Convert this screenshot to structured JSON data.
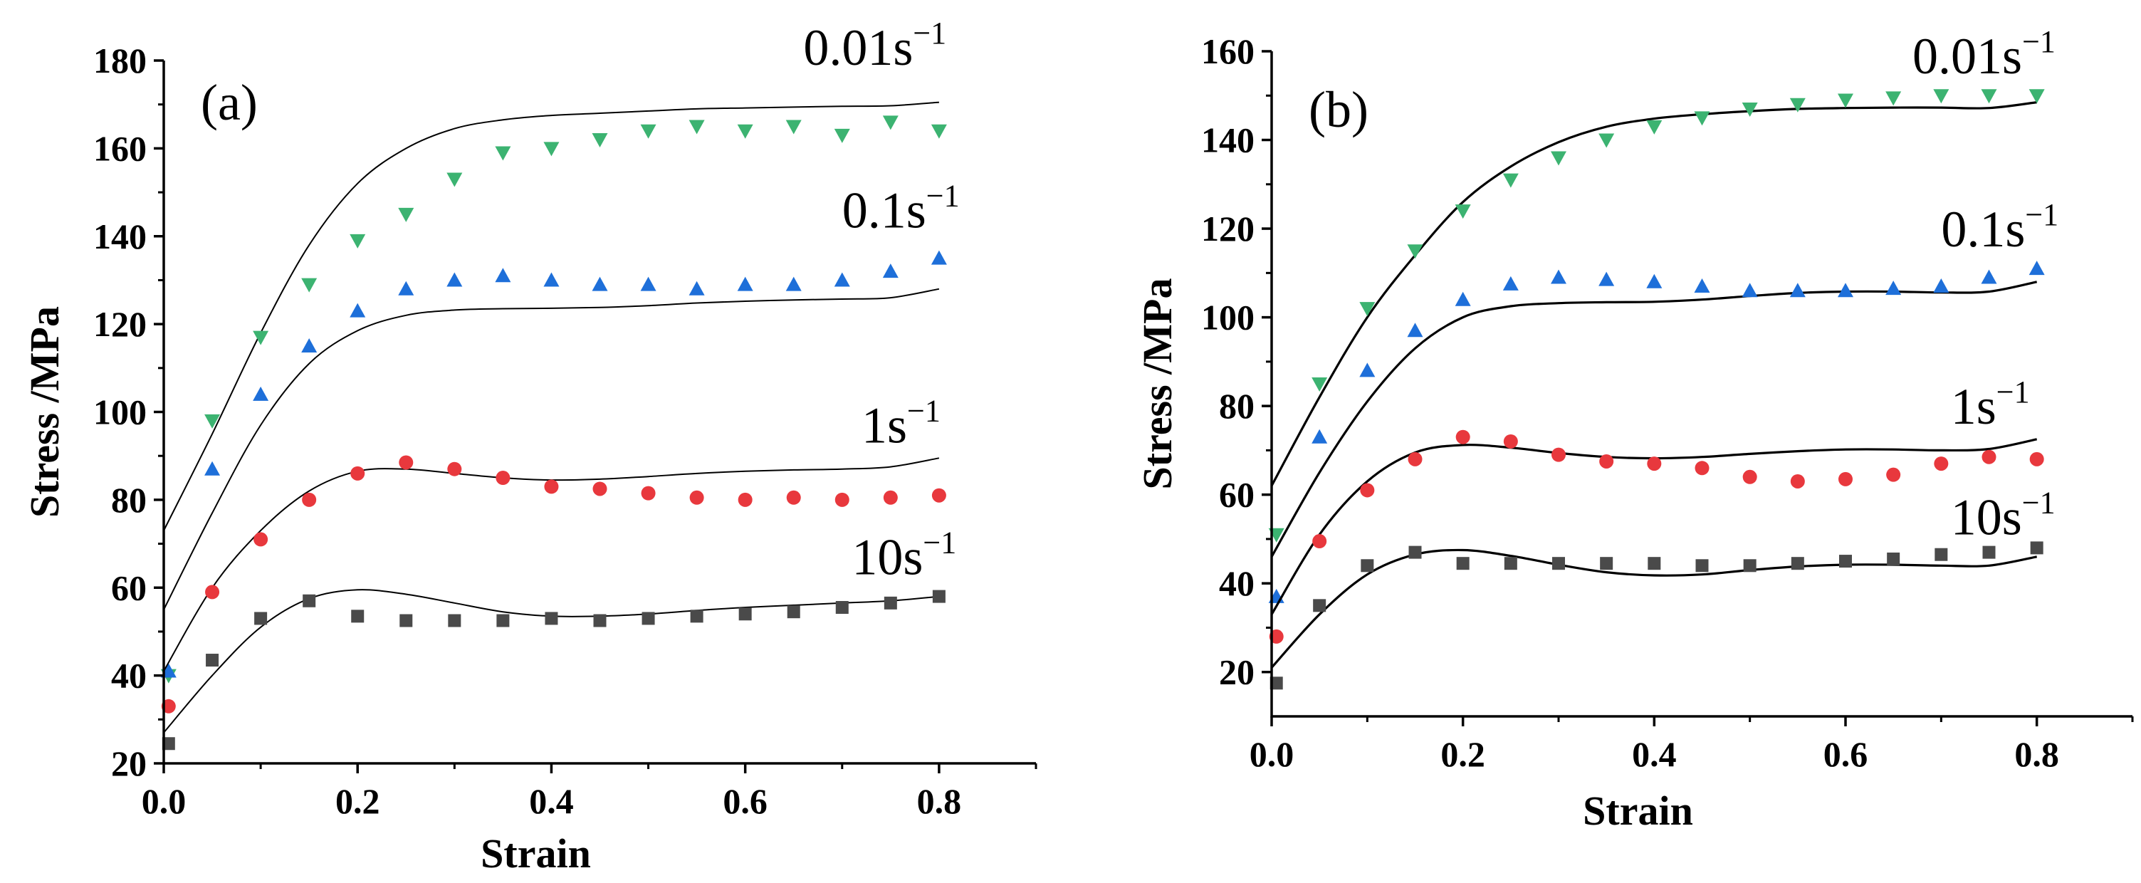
{
  "chart_data": [
    {
      "type": "scatter",
      "panel_label": "(a)",
      "xlabel": "Strain",
      "ylabel": "Stress /MPa",
      "xlim": [
        0,
        0.9
      ],
      "ylim": [
        20,
        180
      ],
      "xticks": [
        0.0,
        0.2,
        0.4,
        0.6,
        0.8
      ],
      "xtick_labels": [
        "0.0",
        "0.2",
        "0.4",
        "0.6",
        "0.8"
      ],
      "yticks": [
        20,
        40,
        60,
        80,
        100,
        120,
        140,
        160,
        180
      ],
      "ytick_labels": [
        "20",
        "40",
        "60",
        "80",
        "100",
        "120",
        "140",
        "160",
        "180"
      ],
      "series": [
        {
          "name": "0.01s-1",
          "label_base": "0.01s",
          "label_sup": "−1",
          "color": "#3cb371",
          "marker": "triangle-down",
          "x": [
            0.005,
            0.05,
            0.1,
            0.15,
            0.2,
            0.25,
            0.3,
            0.35,
            0.4,
            0.45,
            0.5,
            0.55,
            0.6,
            0.65,
            0.7,
            0.75,
            0.8
          ],
          "y": [
            40,
            98,
            117,
            129,
            139,
            145,
            153,
            159,
            160,
            162,
            164,
            165,
            164,
            165,
            163,
            166,
            164
          ],
          "fit_x": [
            0,
            0.05,
            0.1,
            0.15,
            0.2,
            0.25,
            0.3,
            0.35,
            0.4,
            0.45,
            0.5,
            0.55,
            0.6,
            0.65,
            0.7,
            0.75,
            0.8
          ],
          "fit_y": [
            73,
            95,
            118,
            138,
            152,
            160,
            164.5,
            166.5,
            167.5,
            168,
            168.5,
            169,
            169.2,
            169.4,
            169.6,
            169.7,
            170.5
          ],
          "label_x": 0.66,
          "label_y": 179
        },
        {
          "name": "0.1s-1",
          "label_base": "0.1s",
          "label_sup": "−1",
          "color": "#1e6fd9",
          "marker": "triangle-up",
          "x": [
            0.005,
            0.05,
            0.1,
            0.15,
            0.2,
            0.25,
            0.3,
            0.35,
            0.4,
            0.45,
            0.5,
            0.55,
            0.6,
            0.65,
            0.7,
            0.75,
            0.8
          ],
          "y": [
            41,
            87,
            104,
            115,
            123,
            128,
            130,
            131,
            130,
            129,
            129,
            128,
            129,
            129,
            130,
            132,
            135
          ],
          "fit_x": [
            0,
            0.05,
            0.1,
            0.15,
            0.2,
            0.25,
            0.3,
            0.35,
            0.4,
            0.45,
            0.5,
            0.55,
            0.6,
            0.65,
            0.7,
            0.75,
            0.8
          ],
          "fit_y": [
            55,
            77,
            97,
            111,
            118.5,
            122,
            123.2,
            123.5,
            123.6,
            123.8,
            124.2,
            124.8,
            125.2,
            125.5,
            125.7,
            126,
            128
          ],
          "label_x": 0.7,
          "label_y": 142
        },
        {
          "name": "1s-1",
          "label_base": "1s",
          "label_sup": "−1",
          "color": "#e8383d",
          "marker": "circle",
          "x": [
            0.005,
            0.05,
            0.1,
            0.15,
            0.2,
            0.25,
            0.3,
            0.35,
            0.4,
            0.45,
            0.5,
            0.55,
            0.6,
            0.65,
            0.7,
            0.75,
            0.8
          ],
          "y": [
            33,
            59,
            71,
            80,
            86,
            88.5,
            87,
            85,
            83,
            82.5,
            81.5,
            80.5,
            80,
            80.5,
            80,
            80.5,
            81
          ],
          "fit_x": [
            0,
            0.05,
            0.1,
            0.15,
            0.2,
            0.25,
            0.3,
            0.35,
            0.4,
            0.45,
            0.5,
            0.55,
            0.6,
            0.65,
            0.7,
            0.75,
            0.8
          ],
          "fit_y": [
            41,
            60,
            73,
            82,
            86.5,
            87,
            86,
            85,
            84.5,
            84.7,
            85.3,
            86,
            86.5,
            86.8,
            87,
            87.5,
            89.5
          ],
          "label_x": 0.72,
          "label_y": 93
        },
        {
          "name": "10s-1",
          "label_base": "10s",
          "label_sup": "−1",
          "color": "#4a4a4a",
          "marker": "square",
          "x": [
            0.005,
            0.05,
            0.1,
            0.15,
            0.2,
            0.25,
            0.3,
            0.35,
            0.4,
            0.45,
            0.5,
            0.55,
            0.6,
            0.65,
            0.7,
            0.75,
            0.8
          ],
          "y": [
            24.5,
            43.5,
            53,
            57,
            53.5,
            52.5,
            52.5,
            52.5,
            53,
            52.5,
            53,
            53.5,
            54,
            54.5,
            55.5,
            56.5,
            58
          ],
          "fit_x": [
            0,
            0.05,
            0.1,
            0.15,
            0.2,
            0.25,
            0.3,
            0.35,
            0.4,
            0.45,
            0.5,
            0.55,
            0.6,
            0.65,
            0.7,
            0.75,
            0.8
          ],
          "fit_y": [
            27,
            40,
            51,
            57.5,
            59.5,
            58.5,
            56.5,
            54.5,
            53.5,
            53.5,
            54,
            54.8,
            55.5,
            56,
            56.5,
            57,
            58
          ],
          "label_x": 0.71,
          "label_y": 63
        }
      ]
    },
    {
      "type": "scatter",
      "panel_label": "(b)",
      "xlabel": "Strain",
      "ylabel": "Stress /MPa",
      "xlim": [
        0,
        0.9
      ],
      "ylim": [
        10,
        160
      ],
      "xticks": [
        0.0,
        0.2,
        0.4,
        0.6,
        0.8
      ],
      "xtick_labels": [
        "0.0",
        "0.2",
        "0.4",
        "0.6",
        "0.8"
      ],
      "yticks": [
        20,
        40,
        60,
        80,
        100,
        120,
        140,
        160
      ],
      "ytick_labels": [
        "20",
        "40",
        "60",
        "80",
        "100",
        "120",
        "140",
        "160"
      ],
      "series": [
        {
          "name": "0.01s-1",
          "label_base": "0.01s",
          "label_sup": "−1",
          "color": "#3cb371",
          "marker": "triangle-down",
          "x": [
            0.005,
            0.05,
            0.1,
            0.15,
            0.2,
            0.25,
            0.3,
            0.35,
            0.4,
            0.45,
            0.5,
            0.55,
            0.6,
            0.65,
            0.7,
            0.75,
            0.8
          ],
          "y": [
            51,
            85,
            102,
            115,
            124,
            131,
            136,
            140,
            143,
            145,
            147,
            148,
            149,
            149.5,
            150,
            150,
            150
          ],
          "fit_x": [
            0,
            0.05,
            0.1,
            0.15,
            0.2,
            0.25,
            0.3,
            0.35,
            0.4,
            0.45,
            0.5,
            0.55,
            0.6,
            0.65,
            0.7,
            0.75,
            0.8
          ],
          "fit_y": [
            62,
            82,
            100,
            114,
            126,
            134,
            139.5,
            143,
            144.8,
            145.8,
            146.5,
            147,
            147.2,
            147.3,
            147.3,
            147.2,
            148.5
          ],
          "label_x": 0.67,
          "label_y": 155
        },
        {
          "name": "0.1s-1",
          "label_base": "0.1s",
          "label_sup": "−1",
          "color": "#1e6fd9",
          "marker": "triangle-up",
          "x": [
            0.005,
            0.05,
            0.1,
            0.15,
            0.2,
            0.25,
            0.3,
            0.35,
            0.4,
            0.45,
            0.5,
            0.55,
            0.6,
            0.65,
            0.7,
            0.75,
            0.8
          ],
          "y": [
            37,
            73,
            88,
            97,
            104,
            107.5,
            109,
            108.5,
            108,
            107,
            106,
            106,
            106,
            106.5,
            107,
            109,
            111
          ],
          "fit_x": [
            0,
            0.05,
            0.1,
            0.15,
            0.2,
            0.25,
            0.3,
            0.35,
            0.4,
            0.45,
            0.5,
            0.55,
            0.6,
            0.65,
            0.7,
            0.75,
            0.8
          ],
          "fit_y": [
            46,
            65,
            81,
            93,
            100,
            102.5,
            103.2,
            103.4,
            103.5,
            104,
            104.8,
            105.5,
            105.8,
            105.8,
            105.6,
            105.8,
            108
          ],
          "label_x": 0.7,
          "label_y": 116
        },
        {
          "name": "1s-1",
          "label_base": "1s",
          "label_sup": "−1",
          "color": "#e8383d",
          "marker": "circle",
          "x": [
            0.005,
            0.05,
            0.1,
            0.15,
            0.2,
            0.25,
            0.3,
            0.35,
            0.4,
            0.45,
            0.5,
            0.55,
            0.6,
            0.65,
            0.7,
            0.75,
            0.8
          ],
          "y": [
            28,
            49.5,
            61,
            68,
            73,
            72,
            69,
            67.5,
            67,
            66,
            64,
            63,
            63.5,
            64.5,
            67,
            68.5,
            68
          ],
          "fit_x": [
            0,
            0.05,
            0.1,
            0.15,
            0.2,
            0.25,
            0.3,
            0.35,
            0.4,
            0.45,
            0.5,
            0.55,
            0.6,
            0.65,
            0.7,
            0.75,
            0.8
          ],
          "fit_y": [
            33,
            51,
            63,
            69.5,
            71.2,
            70.6,
            69.4,
            68.5,
            68.2,
            68.5,
            69.2,
            69.8,
            70.2,
            70.2,
            70,
            70.3,
            72.5
          ],
          "label_x": 0.71,
          "label_y": 76
        },
        {
          "name": "10s-1",
          "label_base": "10s",
          "label_sup": "−1",
          "color": "#4a4a4a",
          "marker": "square",
          "x": [
            0.005,
            0.05,
            0.1,
            0.15,
            0.2,
            0.25,
            0.3,
            0.35,
            0.4,
            0.45,
            0.5,
            0.55,
            0.6,
            0.65,
            0.7,
            0.75,
            0.8
          ],
          "y": [
            17.5,
            35,
            44,
            47,
            44.5,
            44.5,
            44.5,
            44.5,
            44.5,
            44,
            44,
            44.5,
            45,
            45.5,
            46.5,
            47,
            48
          ],
          "fit_x": [
            0,
            0.05,
            0.1,
            0.15,
            0.2,
            0.25,
            0.3,
            0.35,
            0.4,
            0.45,
            0.5,
            0.55,
            0.6,
            0.65,
            0.7,
            0.75,
            0.8
          ],
          "fit_y": [
            21,
            33,
            42,
            46.5,
            47.5,
            46.2,
            44.2,
            42.5,
            41.8,
            42,
            43,
            43.8,
            44.2,
            44.2,
            44,
            44,
            46
          ],
          "label_x": 0.71,
          "label_y": 51
        }
      ]
    }
  ]
}
